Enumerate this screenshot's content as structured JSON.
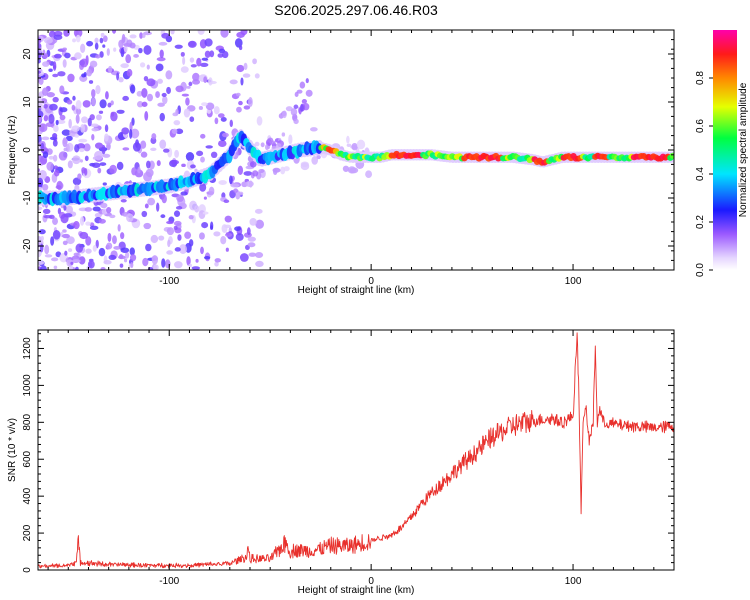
{
  "page": {
    "title": "S206.2025.297.06.46.R03"
  },
  "colors": {
    "snr_line": "#e8302c",
    "axis": "#000000",
    "background": "#ffffff"
  },
  "chart_data": [
    {
      "type": "heatmap",
      "name": "spectrogram",
      "title": "S206.2025.297.06.46.R03",
      "xlabel": "Height of straight line (km)",
      "ylabel": "Frequency (Hz)",
      "xlim": [
        -165,
        150
      ],
      "ylim": [
        -25,
        25
      ],
      "xticks": [
        -100,
        0,
        100
      ],
      "yticks": [
        -20,
        -10,
        0,
        10,
        20
      ],
      "colorbar": {
        "label": "Normalized spectral amplitude",
        "range": [
          0,
          1
        ],
        "ticks": [
          "0.0",
          "0.2",
          "0.4",
          "0.6",
          "0.8"
        ],
        "tick_values": [
          0.0,
          0.2,
          0.4,
          0.6,
          0.8
        ]
      },
      "ridge": {
        "description_points_height_km": [
          -165,
          -150,
          -130,
          -110,
          -100,
          -90,
          -80,
          -70,
          -65,
          -55,
          -45,
          -35,
          -25,
          -20,
          -15,
          -10,
          -5,
          0,
          5,
          10,
          20,
          30,
          40,
          50,
          60,
          70,
          80,
          85,
          90,
          95,
          100,
          110,
          120,
          130,
          140,
          150
        ],
        "frequency_hz": [
          -10,
          -10,
          -9,
          -8,
          -7.5,
          -6.5,
          -5,
          -1,
          3,
          -2,
          -1,
          0,
          0.5,
          0,
          -1,
          -1.5,
          -1.5,
          -1.5,
          -1.5,
          -1,
          -1,
          -1,
          -1.5,
          -1.5,
          -1.5,
          -1.5,
          -2,
          -2.5,
          -2,
          -1.5,
          -1.5,
          -1.5,
          -1.5,
          -1.5,
          -1.5,
          -1.5
        ]
      }
    },
    {
      "type": "line",
      "name": "snr",
      "xlabel": "Height of straight line (km)",
      "ylabel": "SNR (10 * v/v)",
      "xlim": [
        -165,
        150
      ],
      "ylim": [
        0,
        1300
      ],
      "xticks": [
        -100,
        0,
        100
      ],
      "yticks": [
        0,
        200,
        400,
        600,
        800,
        1000,
        1200
      ],
      "series": [
        {
          "name": "SNR",
          "x": [
            -165,
            -150,
            -146,
            -145,
            -144,
            -130,
            -110,
            -90,
            -70,
            -62,
            -61,
            -60,
            -50,
            -42,
            -40,
            -38,
            -30,
            -20,
            -10,
            0,
            10,
            15,
            20,
            25,
            30,
            40,
            50,
            60,
            70,
            80,
            90,
            95,
            100,
            102,
            103,
            104,
            105,
            106,
            108,
            110,
            111,
            112,
            113,
            115,
            120,
            130,
            140,
            150
          ],
          "values": [
            20,
            25,
            45,
            150,
            40,
            30,
            25,
            25,
            35,
            70,
            120,
            60,
            60,
            150,
            90,
            110,
            100,
            130,
            130,
            160,
            190,
            230,
            290,
            360,
            420,
            520,
            620,
            720,
            780,
            810,
            820,
            800,
            830,
            1300,
            900,
            320,
            780,
            900,
            700,
            800,
            1230,
            780,
            880,
            800,
            790,
            780,
            770,
            780
          ]
        }
      ]
    }
  ]
}
